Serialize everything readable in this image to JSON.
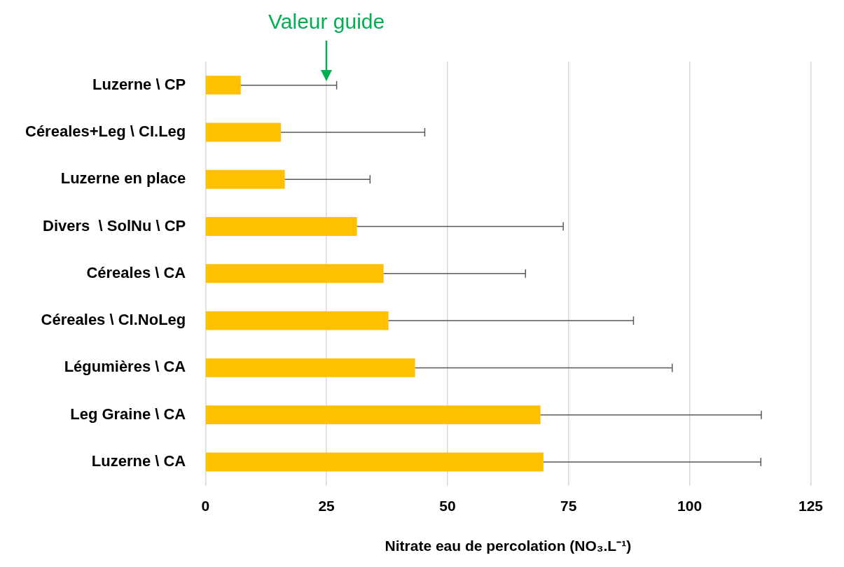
{
  "chart_data": {
    "type": "bar",
    "orientation": "horizontal",
    "xlabel": "Nitrate eau de percolation (NO₃.L⁻¹)",
    "categories": [
      "Luzerne \\ CP",
      "Céreales+Leg \\ CI.Leg",
      "Luzerne en place",
      "Divers  \\ SolNu \\ CP",
      "Céreales \\ CA",
      "Céreales \\ CI.NoLeg",
      "Légumières \\ CA",
      "Leg Graine \\ CA",
      "Luzerne \\ CA"
    ],
    "values": [
      7.3,
      15.6,
      16.4,
      31.3,
      36.8,
      37.8,
      43.3,
      69.2,
      69.8
    ],
    "errors": [
      [
        7.3,
        27.1
      ],
      [
        15.6,
        45.3
      ],
      [
        16.4,
        34
      ],
      [
        31.3,
        73.9
      ],
      [
        36.8,
        66.1
      ],
      [
        37.8,
        88.4
      ],
      [
        43.3,
        96.4
      ],
      [
        69.2,
        114.8
      ],
      [
        69.8,
        114.7
      ]
    ],
    "color": "#ffc000",
    "xlim": [
      0,
      125
    ],
    "xticks": [
      0,
      25,
      50,
      75,
      100,
      125
    ],
    "grid": "x",
    "legend": false,
    "ref_lines": [
      {
        "axis": "x",
        "value": 25,
        "label": "Valeur guide",
        "color": "#00b050"
      }
    ]
  }
}
